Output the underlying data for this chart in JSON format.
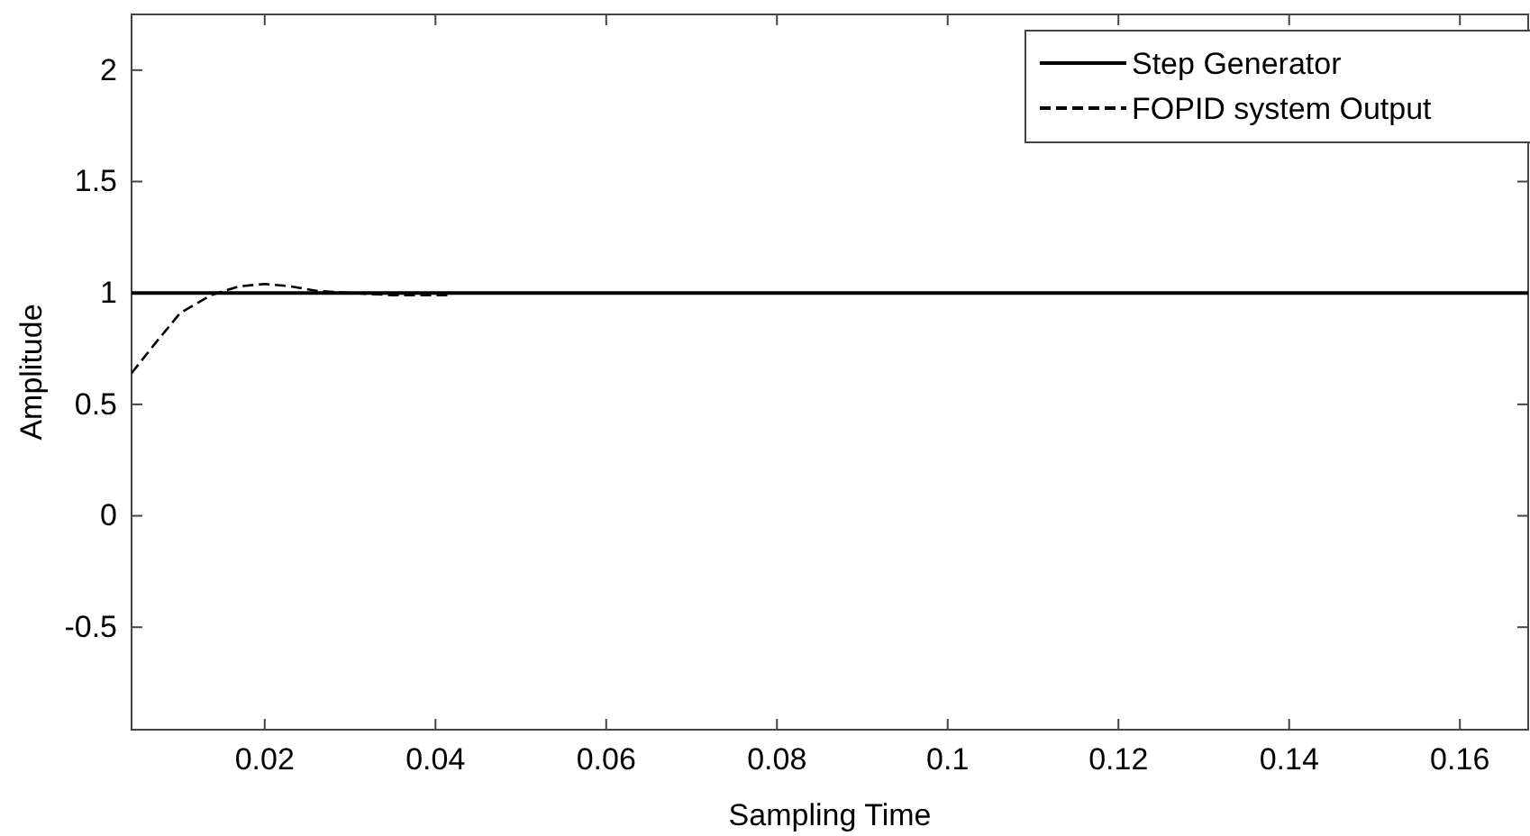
{
  "chart_data": {
    "type": "line",
    "xlabel": "Sampling Time",
    "ylabel": "Amplitude",
    "xlim": [
      0.0044,
      0.168
    ],
    "xticks": [
      0.02,
      0.04,
      0.06,
      0.08,
      0.1,
      0.12,
      0.14,
      0.16
    ],
    "ylim": [
      -0.96,
      2.25
    ],
    "yticks": [
      -0.5,
      0,
      0.5,
      1,
      1.5,
      2
    ],
    "grid": false,
    "legend": "top right",
    "series": [
      {
        "name": "Step Generator",
        "color": "#000000",
        "line_style": "solid",
        "x": [
          0.0044,
          0.168
        ],
        "values": [
          1,
          1
        ]
      },
      {
        "name": "FOPID system Output",
        "color": "#000000",
        "line_style": "dashed",
        "x": [
          0.0044,
          0.0073,
          0.0101,
          0.0137,
          0.017,
          0.02,
          0.023,
          0.026,
          0.03,
          0.035,
          0.042
        ],
        "values": [
          0.64,
          0.78,
          0.91,
          0.99,
          1.03,
          1.04,
          1.03,
          1.01,
          1.0,
          0.99,
          0.99
        ]
      }
    ]
  }
}
